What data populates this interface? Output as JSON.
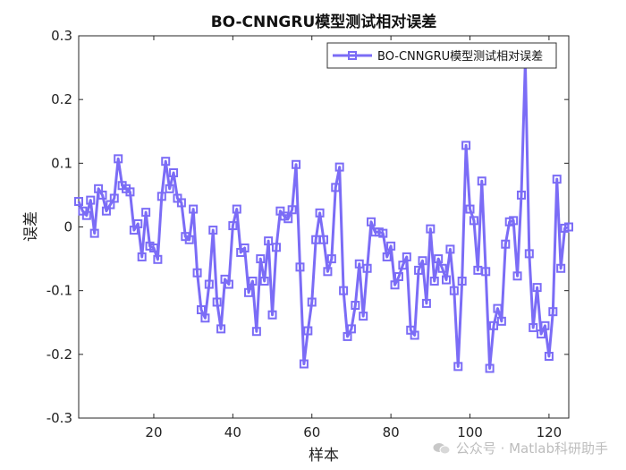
{
  "chart_data": {
    "type": "line",
    "title": "BO-CNNGRU模型测试相对误差",
    "xlabel": "样本",
    "ylabel": "误差",
    "xlim": [
      1,
      125
    ],
    "ylim": [
      -0.3,
      0.3
    ],
    "xticks": [
      20,
      40,
      60,
      80,
      100,
      120
    ],
    "yticks": [
      -0.3,
      -0.2,
      -0.1,
      0,
      0.1,
      0.2,
      0.3
    ],
    "ytick_labels": [
      "-0.3",
      "-0.2",
      "-0.1",
      "0",
      "0.1",
      "0.2",
      "0.3"
    ],
    "legend": {
      "position": "top-right",
      "entries": [
        "BO-CNNGRU模型测试相对误差"
      ]
    },
    "series": [
      {
        "name": "BO-CNNGRU模型测试相对误差",
        "color": "#7b6cf6",
        "marker": "square",
        "x": [
          1,
          2,
          3,
          4,
          5,
          6,
          7,
          8,
          9,
          10,
          11,
          12,
          13,
          14,
          15,
          16,
          17,
          18,
          19,
          20,
          21,
          22,
          23,
          24,
          25,
          26,
          27,
          28,
          29,
          30,
          31,
          32,
          33,
          34,
          35,
          36,
          37,
          38,
          39,
          40,
          41,
          42,
          43,
          44,
          45,
          46,
          47,
          48,
          49,
          50,
          51,
          52,
          53,
          54,
          55,
          56,
          57,
          58,
          59,
          60,
          61,
          62,
          63,
          64,
          65,
          66,
          67,
          68,
          69,
          70,
          71,
          72,
          73,
          74,
          75,
          76,
          77,
          78,
          79,
          80,
          81,
          82,
          83,
          84,
          85,
          86,
          87,
          88,
          89,
          90,
          91,
          92,
          93,
          94,
          95,
          96,
          97,
          98,
          99,
          100,
          101,
          102,
          103,
          104,
          105,
          106,
          107,
          108,
          109,
          110,
          111,
          112,
          113,
          114,
          115,
          116,
          117,
          118,
          119,
          120,
          121,
          122,
          123,
          124,
          125
        ],
        "values": [
          0.04,
          0.025,
          0.018,
          0.042,
          -0.01,
          0.06,
          0.05,
          0.025,
          0.035,
          0.045,
          0.107,
          0.065,
          0.06,
          0.055,
          -0.005,
          0.005,
          -0.047,
          0.023,
          -0.03,
          -0.033,
          -0.051,
          0.048,
          0.103,
          0.06,
          0.085,
          0.045,
          0.038,
          -0.015,
          -0.02,
          0.028,
          -0.072,
          -0.13,
          -0.143,
          -0.09,
          -0.005,
          -0.118,
          -0.16,
          -0.082,
          -0.09,
          0.002,
          0.028,
          -0.04,
          -0.033,
          -0.103,
          -0.085,
          -0.164,
          -0.05,
          -0.085,
          -0.022,
          -0.138,
          -0.032,
          0.025,
          0.017,
          0.013,
          0.027,
          0.098,
          -0.063,
          -0.215,
          -0.163,
          -0.118,
          -0.02,
          0.022,
          -0.02,
          -0.07,
          -0.05,
          0.062,
          0.094,
          -0.1,
          -0.172,
          -0.16,
          -0.123,
          -0.058,
          -0.14,
          -0.065,
          0.008,
          -0.008,
          -0.008,
          -0.01,
          -0.047,
          -0.03,
          -0.091,
          -0.078,
          -0.06,
          -0.047,
          -0.162,
          -0.17,
          -0.068,
          -0.053,
          -0.12,
          -0.003,
          -0.085,
          -0.05,
          -0.065,
          -0.083,
          -0.035,
          -0.1,
          -0.219,
          -0.085,
          0.128,
          0.028,
          0.01,
          -0.068,
          0.072,
          -0.07,
          -0.222,
          -0.155,
          -0.128,
          -0.148,
          -0.027,
          0.008,
          0.01,
          -0.077,
          0.05,
          0.26,
          -0.042,
          -0.158,
          -0.095,
          -0.168,
          -0.155,
          -0.203,
          -0.133,
          0.075,
          -0.065,
          -0.002,
          0
        ]
      }
    ]
  },
  "watermark": {
    "text": "公众号 · Matlab科研助手",
    "color": "#bdbdbd"
  }
}
